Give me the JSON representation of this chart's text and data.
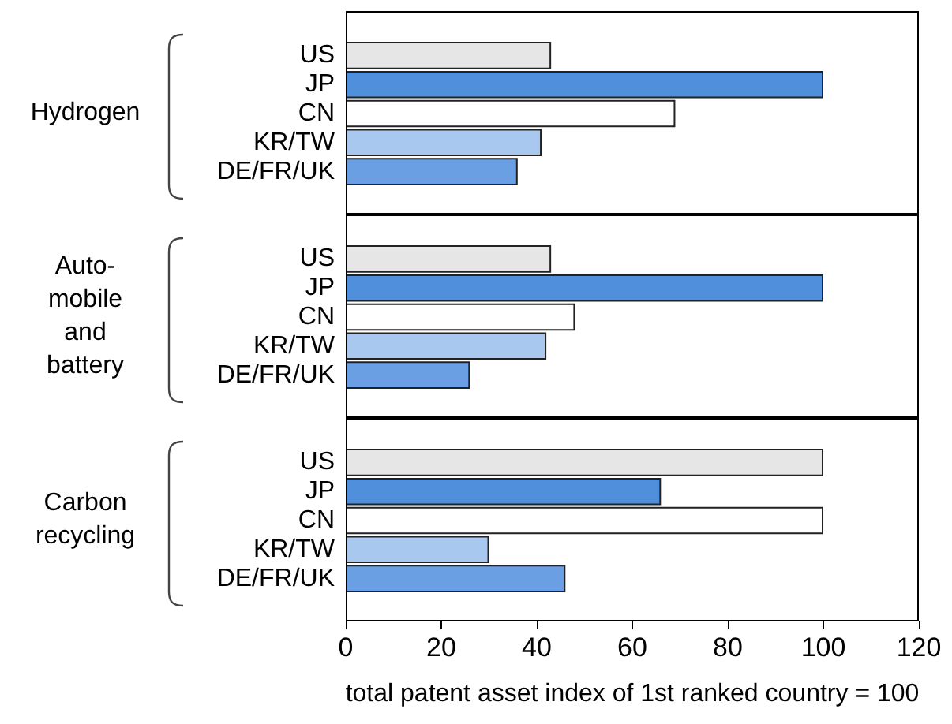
{
  "chart_data": [
    {
      "type": "bar",
      "orientation": "horizontal",
      "ylabel": "Hydrogen",
      "categories": [
        "US",
        "JP",
        "CN",
        "KR/TW",
        "DE/FR/UK"
      ],
      "values": [
        43,
        100,
        69,
        41,
        36
      ],
      "colors": [
        "#e6e6e6",
        "#4f8fdb",
        "#ffffff",
        "#a8c8f0",
        "#6a9fe3"
      ],
      "xlim": [
        0,
        120
      ],
      "xticks": [
        0,
        20,
        40,
        60,
        80,
        100,
        120
      ],
      "tick_labels": "y"
    },
    {
      "type": "bar",
      "orientation": "horizontal",
      "ylabel": "Auto-\nmobile\nand\nbattery",
      "categories": [
        "US",
        "JP",
        "CN",
        "KR/TW",
        "DE/FR/UK"
      ],
      "values": [
        43,
        100,
        48,
        42,
        26
      ],
      "colors": [
        "#e6e6e6",
        "#4f8fdb",
        "#ffffff",
        "#a8c8f0",
        "#6a9fe3"
      ],
      "xlim": [
        0,
        120
      ],
      "xticks": [
        0,
        20,
        40,
        60,
        80,
        100,
        120
      ],
      "tick_labels": "y"
    },
    {
      "type": "bar",
      "orientation": "horizontal",
      "ylabel": "Carbon\nrecycling",
      "xlabel": "total patent asset index of 1st ranked country = 100",
      "categories": [
        "US",
        "JP",
        "CN",
        "KR/TW",
        "DE/FR/UK"
      ],
      "values": [
        100,
        66,
        100,
        30,
        46
      ],
      "colors": [
        "#e6e6e6",
        "#4f8fdb",
        "#ffffff",
        "#a8c8f0",
        "#6a9fe3"
      ],
      "xlim": [
        0,
        120
      ],
      "xticks": [
        0,
        20,
        40,
        60,
        80,
        100,
        120
      ]
    }
  ]
}
